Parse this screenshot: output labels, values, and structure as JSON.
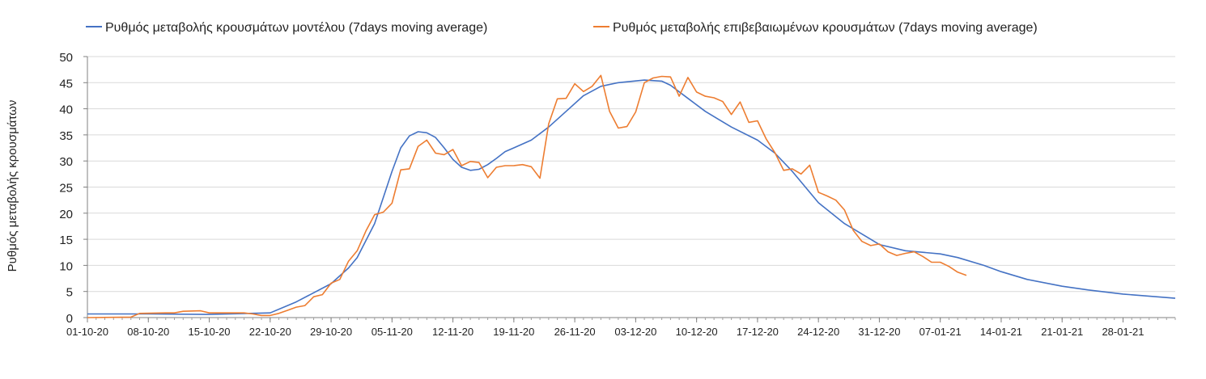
{
  "chart_data": {
    "type": "line",
    "title": "",
    "xlabel": "",
    "ylabel": "Ρυθμός μεταβολής κρουσμάτων",
    "ylim": [
      0,
      50
    ],
    "yticks": [
      0,
      5,
      10,
      15,
      20,
      25,
      30,
      35,
      40,
      45,
      50
    ],
    "x_tick_labels": [
      "01-10-20",
      "08-10-20",
      "15-10-20",
      "22-10-20",
      "29-10-20",
      "05-11-20",
      "12-11-20",
      "19-11-20",
      "26-11-20",
      "03-12-20",
      "10-12-20",
      "17-12-20",
      "24-12-20",
      "31-12-20",
      "07-01-21",
      "14-01-21",
      "21-01-21",
      "28-01-21"
    ],
    "x_start": "01-10-20",
    "x_end": "03-02-21",
    "grid": true,
    "legend_position": "top",
    "colors": {
      "model": "#4472c4",
      "confirmed": "#ed7d31"
    },
    "series": [
      {
        "name": "Ρυθμός μεταβολής κρουσμάτων μοντέλου (7days moving average)",
        "color": "#4472c4",
        "points": [
          [
            "01-10-20",
            0.7
          ],
          [
            "08-10-20",
            0.7
          ],
          [
            "15-10-20",
            0.6
          ],
          [
            "22-10-20",
            0.9
          ],
          [
            "25-10-20",
            3.0
          ],
          [
            "29-10-20",
            6.5
          ],
          [
            "31-10-20",
            9.5
          ],
          [
            "01-11-20",
            11.5
          ],
          [
            "03-11-20",
            18.0
          ],
          [
            "04-11-20",
            23.0
          ],
          [
            "05-11-20",
            28.0
          ],
          [
            "06-11-20",
            32.5
          ],
          [
            "07-11-20",
            34.8
          ],
          [
            "08-11-20",
            35.6
          ],
          [
            "09-11-20",
            35.4
          ],
          [
            "10-11-20",
            34.5
          ],
          [
            "11-11-20",
            32.5
          ],
          [
            "12-11-20",
            30.3
          ],
          [
            "13-11-20",
            28.8
          ],
          [
            "14-11-20",
            28.2
          ],
          [
            "15-11-20",
            28.4
          ],
          [
            "16-11-20",
            29.3
          ],
          [
            "17-11-20",
            30.5
          ],
          [
            "18-11-20",
            31.8
          ],
          [
            "19-11-20",
            32.5
          ],
          [
            "21-11-20",
            34.0
          ],
          [
            "23-11-20",
            36.5
          ],
          [
            "25-11-20",
            39.5
          ],
          [
            "27-11-20",
            42.5
          ],
          [
            "29-11-20",
            44.3
          ],
          [
            "01-12-20",
            45.0
          ],
          [
            "04-12-20",
            45.5
          ],
          [
            "06-12-20",
            45.3
          ],
          [
            "07-12-20",
            44.5
          ],
          [
            "09-12-20",
            42.0
          ],
          [
            "11-12-20",
            39.5
          ],
          [
            "14-12-20",
            36.5
          ],
          [
            "17-12-20",
            34.0
          ],
          [
            "19-12-20",
            31.5
          ],
          [
            "21-12-20",
            28.0
          ],
          [
            "24-12-20",
            22.0
          ],
          [
            "27-12-20",
            18.0
          ],
          [
            "30-12-20",
            15.0
          ],
          [
            "31-12-20",
            14.0
          ],
          [
            "03-01-21",
            12.8
          ],
          [
            "07-01-21",
            12.2
          ],
          [
            "09-01-21",
            11.5
          ],
          [
            "12-01-21",
            10.0
          ],
          [
            "14-01-21",
            8.8
          ],
          [
            "17-01-21",
            7.3
          ],
          [
            "21-01-21",
            6.0
          ],
          [
            "24-01-21",
            5.3
          ],
          [
            "28-01-21",
            4.5
          ],
          [
            "03-02-21",
            3.7
          ]
        ]
      },
      {
        "name": "Ρυθμός μεταβολής επιβεβαιωμένων κρουσμάτων (7days moving average)",
        "color": "#ed7d31",
        "points": [
          [
            "01-10-20",
            0.0
          ],
          [
            "06-10-20",
            0.1
          ],
          [
            "07-10-20",
            0.8
          ],
          [
            "10-10-20",
            0.9
          ],
          [
            "11-10-20",
            0.9
          ],
          [
            "12-10-20",
            1.2
          ],
          [
            "14-10-20",
            1.3
          ],
          [
            "15-10-20",
            0.9
          ],
          [
            "19-10-20",
            0.9
          ],
          [
            "20-10-20",
            0.7
          ],
          [
            "21-10-20",
            0.4
          ],
          [
            "22-10-20",
            0.4
          ],
          [
            "23-10-20",
            0.8
          ],
          [
            "24-10-20",
            1.4
          ],
          [
            "25-10-20",
            2.0
          ],
          [
            "26-10-20",
            2.3
          ],
          [
            "27-10-20",
            4.0
          ],
          [
            "28-10-20",
            4.4
          ],
          [
            "29-10-20",
            6.6
          ],
          [
            "30-10-20",
            7.3
          ],
          [
            "31-10-20",
            10.8
          ],
          [
            "01-11-20",
            12.8
          ],
          [
            "02-11-20",
            16.6
          ],
          [
            "03-11-20",
            19.7
          ],
          [
            "04-11-20",
            20.2
          ],
          [
            "05-11-20",
            21.9
          ],
          [
            "06-11-20",
            28.3
          ],
          [
            "07-11-20",
            28.5
          ],
          [
            "08-11-20",
            32.8
          ],
          [
            "09-11-20",
            34.0
          ],
          [
            "10-11-20",
            31.5
          ],
          [
            "11-11-20",
            31.2
          ],
          [
            "12-11-20",
            32.2
          ],
          [
            "13-11-20",
            29.1
          ],
          [
            "14-11-20",
            29.9
          ],
          [
            "15-11-20",
            29.7
          ],
          [
            "16-11-20",
            26.8
          ],
          [
            "17-11-20",
            28.8
          ],
          [
            "18-11-20",
            29.1
          ],
          [
            "19-11-20",
            29.1
          ],
          [
            "20-11-20",
            29.3
          ],
          [
            "21-11-20",
            28.9
          ],
          [
            "22-11-20",
            26.7
          ],
          [
            "23-11-20",
            37.1
          ],
          [
            "24-11-20",
            41.9
          ],
          [
            "25-11-20",
            42.0
          ],
          [
            "26-11-20",
            44.8
          ],
          [
            "27-11-20",
            43.3
          ],
          [
            "28-11-20",
            44.3
          ],
          [
            "29-11-20",
            46.4
          ],
          [
            "30-11-20",
            39.5
          ],
          [
            "01-12-20",
            36.3
          ],
          [
            "02-12-20",
            36.6
          ],
          [
            "03-12-20",
            39.4
          ],
          [
            "04-12-20",
            45.0
          ],
          [
            "05-12-20",
            45.9
          ],
          [
            "06-12-20",
            46.2
          ],
          [
            "07-12-20",
            46.1
          ],
          [
            "08-12-20",
            42.4
          ],
          [
            "09-12-20",
            46.0
          ],
          [
            "10-12-20",
            43.2
          ],
          [
            "11-12-20",
            42.4
          ],
          [
            "12-12-20",
            42.1
          ],
          [
            "13-12-20",
            41.4
          ],
          [
            "14-12-20",
            38.9
          ],
          [
            "15-12-20",
            41.3
          ],
          [
            "16-12-20",
            37.4
          ],
          [
            "17-12-20",
            37.7
          ],
          [
            "18-12-20",
            34.2
          ],
          [
            "19-12-20",
            31.6
          ],
          [
            "20-12-20",
            28.2
          ],
          [
            "21-12-20",
            28.5
          ],
          [
            "22-12-20",
            27.5
          ],
          [
            "23-12-20",
            29.2
          ],
          [
            "24-12-20",
            24.0
          ],
          [
            "25-12-20",
            23.3
          ],
          [
            "26-12-20",
            22.5
          ],
          [
            "27-12-20",
            20.6
          ],
          [
            "28-12-20",
            16.7
          ],
          [
            "29-12-20",
            14.6
          ],
          [
            "30-12-20",
            13.8
          ],
          [
            "31-12-20",
            14.1
          ],
          [
            "01-01-21",
            12.6
          ],
          [
            "02-01-21",
            11.9
          ],
          [
            "03-01-21",
            12.3
          ],
          [
            "04-01-21",
            12.6
          ],
          [
            "05-01-21",
            11.7
          ],
          [
            "06-01-21",
            10.6
          ],
          [
            "07-01-21",
            10.6
          ],
          [
            "08-01-21",
            9.8
          ],
          [
            "09-01-21",
            8.7
          ],
          [
            "10-01-21",
            8.1
          ]
        ]
      }
    ]
  }
}
